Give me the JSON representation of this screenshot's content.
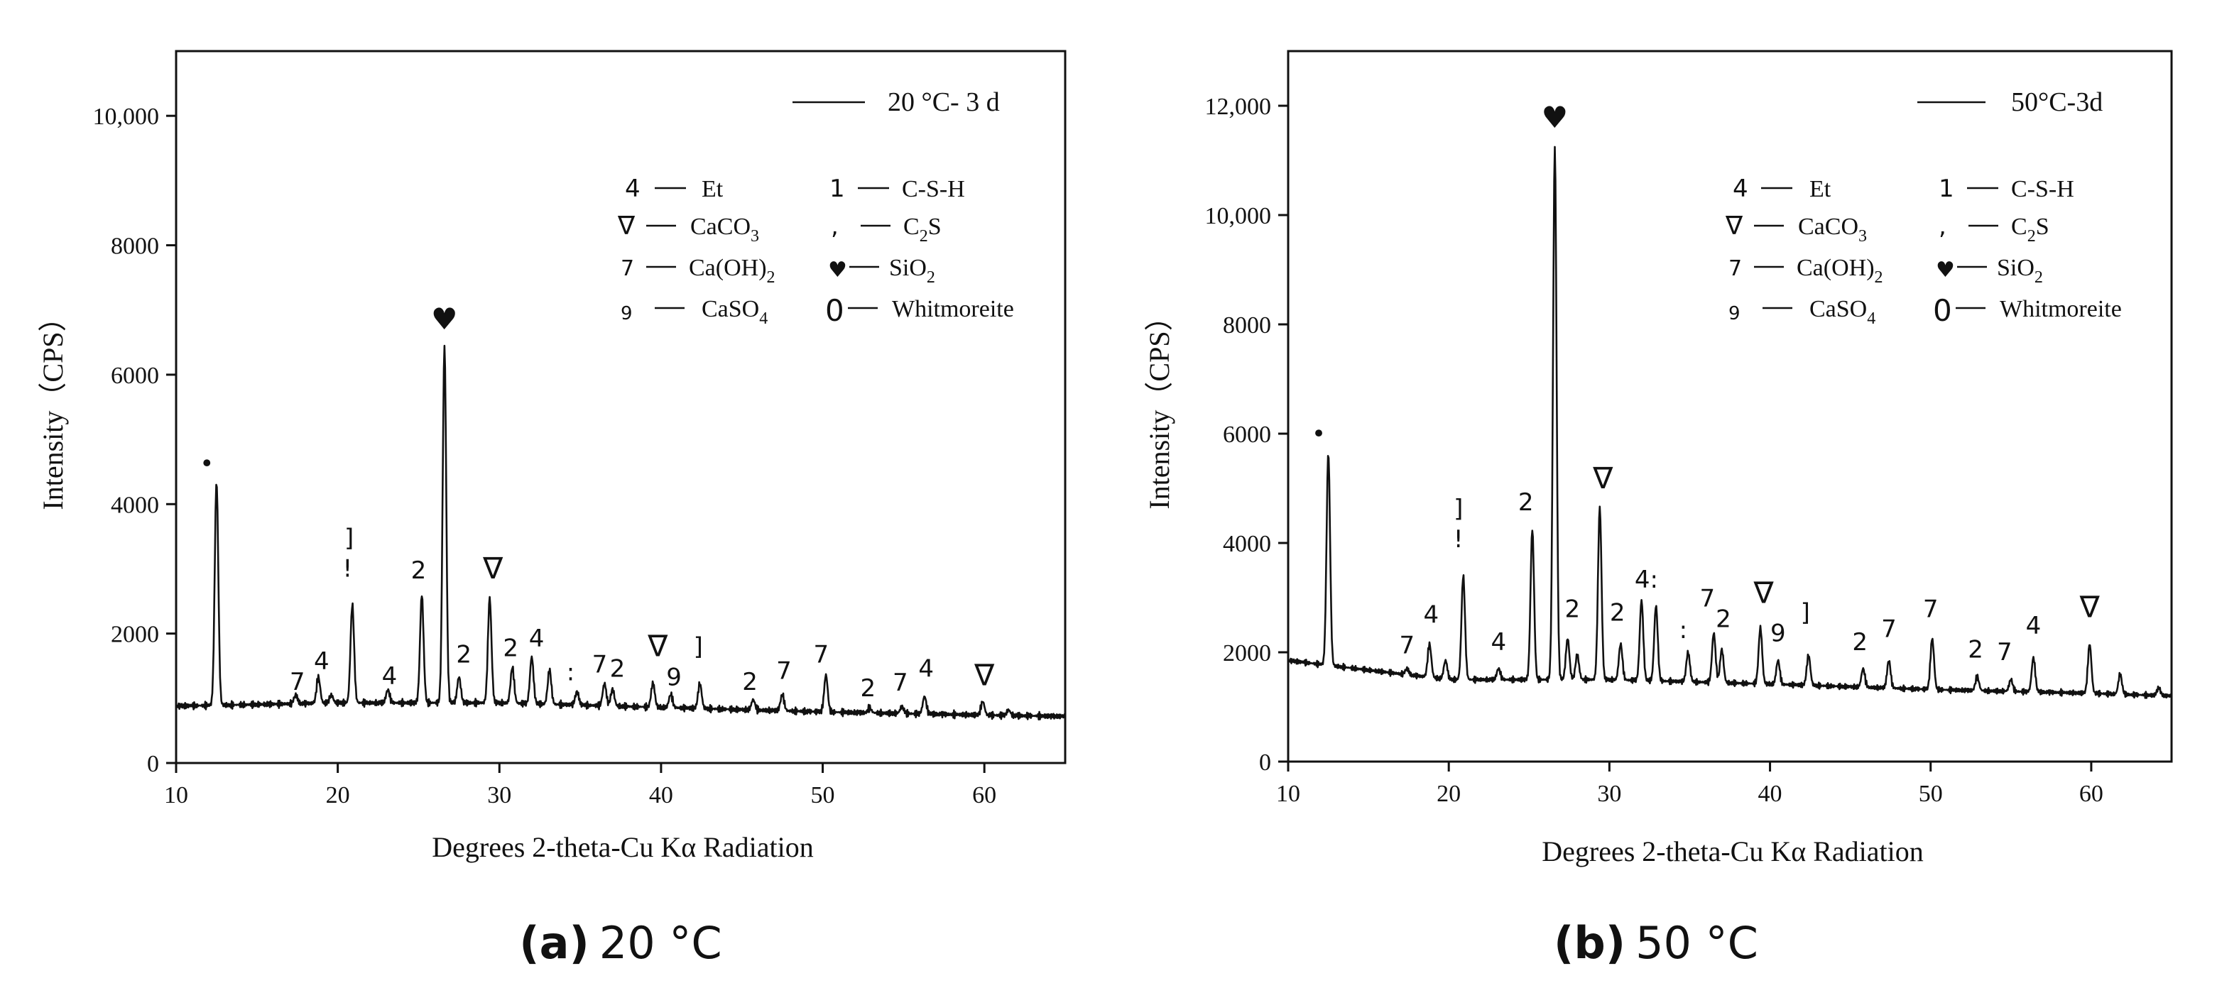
{
  "chart_data": [
    {
      "type": "line",
      "panel_caption": "(a) 20 °C",
      "caption_label": "(a)",
      "caption_text": "20 °C",
      "xlabel": "Degrees 2-theta-Cu Kα Radiation",
      "ylabel": "Intensity（CPS）",
      "xlim": [
        10,
        65
      ],
      "ylim": [
        0,
        11000
      ],
      "xticks": [
        10,
        20,
        30,
        40,
        50,
        60
      ],
      "yticks": [
        0,
        2000,
        4000,
        6000,
        8000,
        10000
      ],
      "ytick_labels": [
        "0",
        "2000",
        "4000",
        "6000",
        "8000",
        "10,000"
      ],
      "series": [
        {
          "name": "20 °C- 3 d",
          "baseline": [
            [
              10,
              880
            ],
            [
              20,
              930
            ],
            [
              30,
              930
            ],
            [
              40,
              860
            ],
            [
              50,
              790
            ],
            [
              60,
              740
            ],
            [
              65,
              720
            ]
          ],
          "peaks": [
            [
              12.5,
              4350
            ],
            [
              17.4,
              1050
            ],
            [
              18.8,
              1330
            ],
            [
              19.6,
              1050
            ],
            [
              20.9,
              2450
            ],
            [
              23.1,
              1130
            ],
            [
              25.2,
              2600
            ],
            [
              26.6,
              6450
            ],
            [
              27.5,
              1330
            ],
            [
              29.4,
              2550
            ],
            [
              30.8,
              1480
            ],
            [
              32.0,
              1640
            ],
            [
              33.1,
              1440
            ],
            [
              34.8,
              1100
            ],
            [
              36.5,
              1230
            ],
            [
              37.0,
              1140
            ],
            [
              39.5,
              1240
            ],
            [
              40.6,
              1060
            ],
            [
              42.4,
              1230
            ],
            [
              45.7,
              980
            ],
            [
              47.5,
              1060
            ],
            [
              50.2,
              1360
            ],
            [
              52.9,
              850
            ],
            [
              54.9,
              870
            ],
            [
              56.3,
              1030
            ],
            [
              59.9,
              950
            ],
            [
              61.5,
              820
            ]
          ]
        }
      ],
      "legend": {
        "entry": "20 °C- 3 d",
        "position": "top-right"
      },
      "phase_key": [
        {
          "symbol": "4",
          "name": "Et"
        },
        {
          "symbol": "1",
          "name": "C-S-H"
        },
        {
          "symbol": "∇",
          "name": "CaCO",
          "sub": "3"
        },
        {
          "symbol": ",",
          "name": "C",
          "sub": "2",
          "tail": "S"
        },
        {
          "symbol": "7",
          "name": "Ca(OH)",
          "sub": "2"
        },
        {
          "symbol": "♥",
          "name": "SiO",
          "sub": "2"
        },
        {
          "symbol": "9",
          "name": "CaSO",
          "sub": "4"
        },
        {
          "symbol": "0",
          "name": "Whitmoreite"
        }
      ],
      "peak_markers": [
        {
          "x": 11.9,
          "y": 4500,
          "label": "•"
        },
        {
          "x": 20.7,
          "y": 3350,
          "label": "]"
        },
        {
          "x": 20.6,
          "y": 2880,
          "label": "!"
        },
        {
          "x": 25.0,
          "y": 2850,
          "label": "2"
        },
        {
          "x": 26.6,
          "y": 6700,
          "label": "♥"
        },
        {
          "x": 29.6,
          "y": 2850,
          "label": "∇"
        },
        {
          "x": 17.5,
          "y": 1130,
          "label": "7"
        },
        {
          "x": 19.0,
          "y": 1450,
          "label": "4"
        },
        {
          "x": 23.2,
          "y": 1220,
          "label": "4"
        },
        {
          "x": 27.8,
          "y": 1550,
          "label": "2"
        },
        {
          "x": 30.7,
          "y": 1650,
          "label": "2"
        },
        {
          "x": 32.3,
          "y": 1800,
          "label": "4"
        },
        {
          "x": 34.4,
          "y": 1280,
          "label": ":"
        },
        {
          "x": 36.2,
          "y": 1400,
          "label": "7"
        },
        {
          "x": 37.3,
          "y": 1330,
          "label": "2"
        },
        {
          "x": 39.8,
          "y": 1650,
          "label": "∇"
        },
        {
          "x": 40.8,
          "y": 1200,
          "label": "9"
        },
        {
          "x": 42.3,
          "y": 1670,
          "label": "]"
        },
        {
          "x": 45.5,
          "y": 1130,
          "label": "2"
        },
        {
          "x": 47.6,
          "y": 1300,
          "label": "7"
        },
        {
          "x": 49.9,
          "y": 1550,
          "label": "7"
        },
        {
          "x": 52.8,
          "y": 1030,
          "label": "2"
        },
        {
          "x": 54.8,
          "y": 1120,
          "label": "7"
        },
        {
          "x": 56.4,
          "y": 1330,
          "label": "4"
        },
        {
          "x": 60.0,
          "y": 1200,
          "label": "∇"
        }
      ]
    },
    {
      "type": "line",
      "panel_caption": "(b) 50 °C",
      "caption_label": "(b)",
      "caption_text": "50 °C",
      "xlabel": "Degrees 2-theta-Cu Kα Radiation",
      "ylabel": "Intensity（CPS）",
      "xlim": [
        10,
        65
      ],
      "ylim": [
        0,
        13000
      ],
      "xticks": [
        10,
        20,
        30,
        40,
        50,
        60
      ],
      "yticks": [
        0,
        2000,
        4000,
        6000,
        8000,
        10000,
        12000
      ],
      "ytick_labels": [
        "0",
        "2000",
        "4000",
        "6000",
        "8000",
        "10,000",
        "12,000"
      ],
      "series": [
        {
          "name": "50°C-3d",
          "baseline": [
            [
              10,
              1850
            ],
            [
              20,
              1500
            ],
            [
              30,
              1500
            ],
            [
              40,
              1420
            ],
            [
              50,
              1320
            ],
            [
              60,
              1250
            ],
            [
              65,
              1200
            ]
          ],
          "peaks": [
            [
              12.5,
              5650
            ],
            [
              17.4,
              1700
            ],
            [
              18.8,
              2150
            ],
            [
              19.8,
              1850
            ],
            [
              20.9,
              3400
            ],
            [
              23.1,
              1700
            ],
            [
              25.2,
              4250
            ],
            [
              26.6,
              11250
            ],
            [
              27.4,
              2250
            ],
            [
              28.0,
              1950
            ],
            [
              29.4,
              4650
            ],
            [
              30.7,
              2150
            ],
            [
              32.0,
              2950
            ],
            [
              32.9,
              2850
            ],
            [
              34.9,
              2000
            ],
            [
              36.5,
              2350
            ],
            [
              37.0,
              2050
            ],
            [
              39.4,
              2450
            ],
            [
              40.5,
              1850
            ],
            [
              42.4,
              1950
            ],
            [
              45.8,
              1700
            ],
            [
              47.4,
              1850
            ],
            [
              50.1,
              2250
            ],
            [
              52.9,
              1550
            ],
            [
              55.0,
              1500
            ],
            [
              56.4,
              1900
            ],
            [
              59.9,
              2150
            ],
            [
              61.8,
              1600
            ],
            [
              64.2,
              1350
            ]
          ]
        }
      ],
      "legend": {
        "entry": "50°C-3d",
        "position": "top-right"
      },
      "phase_key": [
        {
          "symbol": "4",
          "name": "Et"
        },
        {
          "symbol": "1",
          "name": "C-S-H"
        },
        {
          "symbol": "∇",
          "name": "CaCO",
          "sub": "3"
        },
        {
          "symbol": ",",
          "name": "C",
          "sub": "2",
          "tail": "S"
        },
        {
          "symbol": "7",
          "name": "Ca(OH)",
          "sub": "2"
        },
        {
          "symbol": "♥",
          "name": "SiO",
          "sub": "2"
        },
        {
          "symbol": "9",
          "name": "CaSO",
          "sub": "4"
        },
        {
          "symbol": "0",
          "name": "Whitmoreite"
        }
      ],
      "peak_markers": [
        {
          "x": 11.9,
          "y": 5850,
          "label": "•"
        },
        {
          "x": 20.6,
          "y": 4480,
          "label": "]"
        },
        {
          "x": 20.6,
          "y": 3920,
          "label": "!"
        },
        {
          "x": 24.8,
          "y": 4600,
          "label": "2"
        },
        {
          "x": 26.6,
          "y": 11600,
          "label": "♥"
        },
        {
          "x": 29.6,
          "y": 5000,
          "label": "∇"
        },
        {
          "x": 17.4,
          "y": 1980,
          "label": "7"
        },
        {
          "x": 18.9,
          "y": 2540,
          "label": "4"
        },
        {
          "x": 23.1,
          "y": 2040,
          "label": "4"
        },
        {
          "x": 27.7,
          "y": 2640,
          "label": "2"
        },
        {
          "x": 30.5,
          "y": 2580,
          "label": "2"
        },
        {
          "x": 32.3,
          "y": 3180,
          "label": "4:"
        },
        {
          "x": 34.6,
          "y": 2260,
          "label": ":"
        },
        {
          "x": 36.1,
          "y": 2840,
          "label": "7"
        },
        {
          "x": 37.1,
          "y": 2460,
          "label": "2"
        },
        {
          "x": 39.6,
          "y": 2900,
          "label": "∇"
        },
        {
          "x": 40.5,
          "y": 2200,
          "label": "9"
        },
        {
          "x": 42.2,
          "y": 2580,
          "label": "]"
        },
        {
          "x": 45.6,
          "y": 2040,
          "label": "2"
        },
        {
          "x": 47.4,
          "y": 2280,
          "label": "7"
        },
        {
          "x": 50.0,
          "y": 2640,
          "label": "7"
        },
        {
          "x": 52.8,
          "y": 1900,
          "label": "2"
        },
        {
          "x": 54.6,
          "y": 1860,
          "label": "7"
        },
        {
          "x": 56.4,
          "y": 2340,
          "label": "4"
        },
        {
          "x": 59.9,
          "y": 2640,
          "label": "∇"
        }
      ]
    }
  ]
}
